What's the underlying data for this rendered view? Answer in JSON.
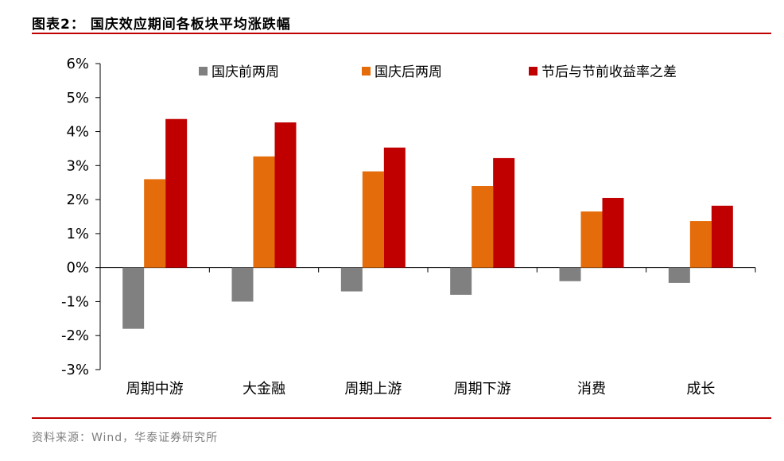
{
  "header": {
    "title": "图表2：  国庆效应期间各板块平均涨跌幅"
  },
  "footer": {
    "source": "资料来源：Wind，华泰证券研究所"
  },
  "colors": {
    "accent_rule": "#c00000"
  },
  "chart_data": {
    "type": "bar",
    "categories": [
      "周期中游",
      "大金融",
      "周期上游",
      "周期下游",
      "消费",
      "成长"
    ],
    "series": [
      {
        "name": "国庆前两周",
        "color": "#808080",
        "values": [
          -1.8,
          -1.0,
          -0.7,
          -0.8,
          -0.4,
          -0.45
        ]
      },
      {
        "name": "国庆后两周",
        "color": "#e46c0a",
        "values": [
          2.6,
          3.27,
          2.83,
          2.4,
          1.65,
          1.37
        ]
      },
      {
        "name": "节后与节前收益率之差",
        "color": "#c00000",
        "values": [
          4.37,
          4.27,
          3.53,
          3.22,
          2.05,
          1.82
        ]
      }
    ],
    "ylim": [
      -3,
      6
    ],
    "yticks": [
      "-3%",
      "-2%",
      "-1%",
      "0%",
      "1%",
      "2%",
      "3%",
      "4%",
      "5%",
      "6%"
    ],
    "ytick_values": [
      -3,
      -2,
      -1,
      0,
      1,
      2,
      3,
      4,
      5,
      6
    ],
    "xlabel": "",
    "ylabel": "",
    "grid": false,
    "legend_position": "top"
  }
}
